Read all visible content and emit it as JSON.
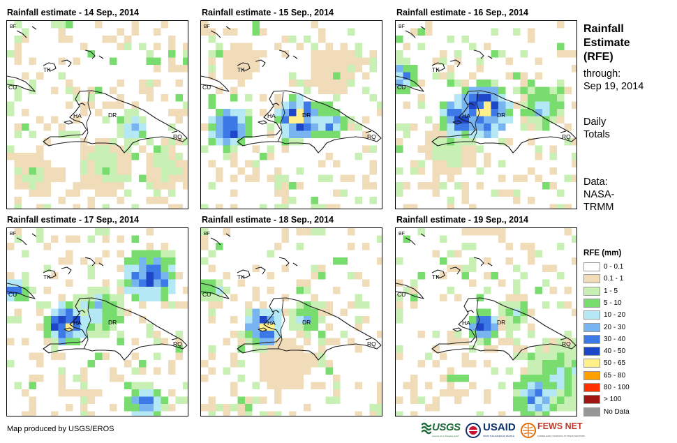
{
  "panels": [
    {
      "title": "Rainfall estimate - 14 Sep., 2014"
    },
    {
      "title": "Rainfall estimate - 15 Sep., 2014"
    },
    {
      "title": "Rainfall estimate - 16 Sep., 2014"
    },
    {
      "title": "Rainfall estimate - 17 Sep., 2014"
    },
    {
      "title": "Rainfall estimate - 18 Sep., 2014"
    },
    {
      "title": "Rainfall estimate - 19 Sep., 2014"
    }
  ],
  "map_labels": {
    "bf": "BF",
    "tk": "TK",
    "cu": "CU",
    "ha": "HA",
    "dr": "DR",
    "rq": "RQ"
  },
  "side": {
    "title_line1": "Rainfall",
    "title_line2": "Estimate",
    "title_line3": "(RFE)",
    "through_label": "through:",
    "through_date": "Sep 19, 2014",
    "totals_line1": "Daily",
    "totals_line2": "Totals",
    "source_line1": "Data:",
    "source_line2": "NASA-",
    "source_line3": "TRMM"
  },
  "legend": {
    "title": "RFE (mm)",
    "classes": [
      {
        "label": "0 - 0.1",
        "color": "#ffffff"
      },
      {
        "label": "0.1 - 1",
        "color": "#f0dcb9"
      },
      {
        "label": "1 - 5",
        "color": "#c8f0b4"
      },
      {
        "label": "5 - 10",
        "color": "#78dc6e"
      },
      {
        "label": "10 - 20",
        "color": "#b4e8f5"
      },
      {
        "label": "20 - 30",
        "color": "#78b4f0"
      },
      {
        "label": "30 - 40",
        "color": "#3c78e6"
      },
      {
        "label": "40 - 50",
        "color": "#1e46c8"
      },
      {
        "label": "50 - 65",
        "color": "#fff08c"
      },
      {
        "label": "65 - 80",
        "color": "#ffa000"
      },
      {
        "label": "80 - 100",
        "color": "#ff3200"
      },
      {
        "label": "> 100",
        "color": "#a01414"
      },
      {
        "label": "No Data",
        "color": "#969696"
      }
    ]
  },
  "footer": {
    "credit": "Map produced by USGS/EROS"
  },
  "logos": {
    "usgs": "USGS",
    "usgs_tagline": "science for a changing world",
    "usaid": "USAID",
    "usaid_tagline": "FROM THE AMERICAN PEOPLE",
    "fews": "FEWS NET",
    "fews_tagline": "FAMINE EARLY WARNING SYSTEMS NETWORK"
  }
}
